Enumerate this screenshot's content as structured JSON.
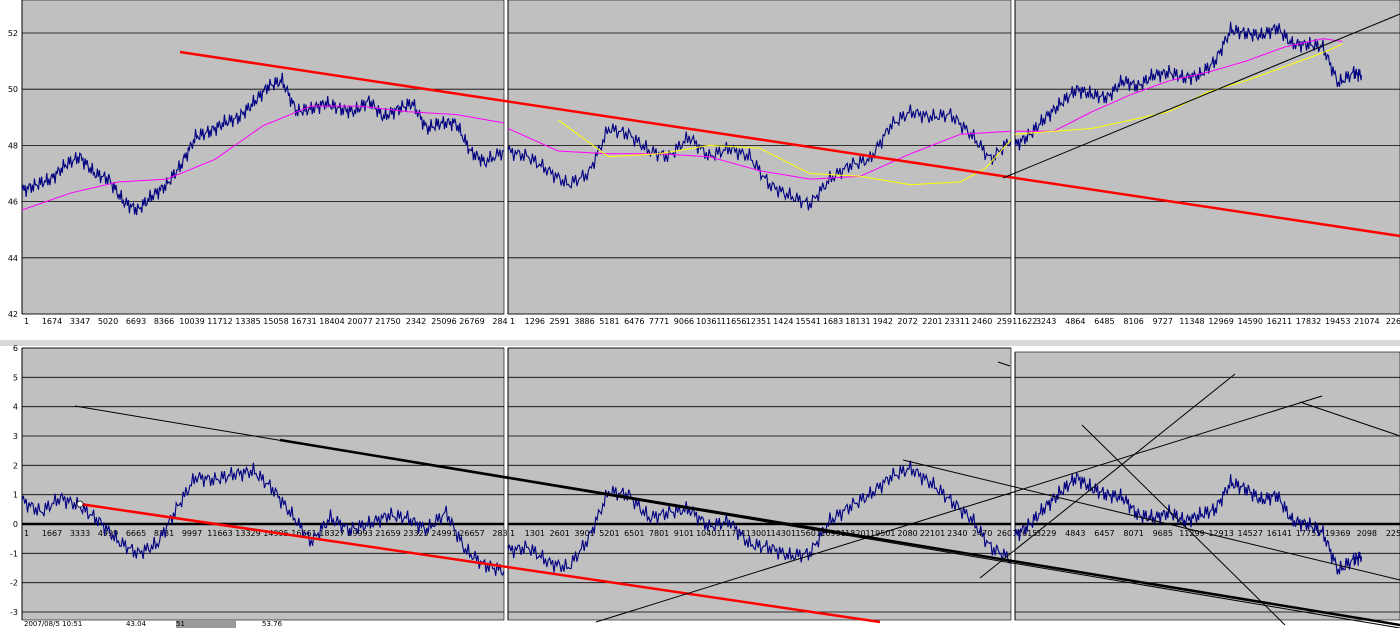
{
  "colors": {
    "plot_bg": "#c0c0c0",
    "gridline": "#000000",
    "price_series": "#000080",
    "ma_magenta": "#ff00ff",
    "ma_yellow": "#ffff00",
    "trend_red": "#ff0000",
    "trend_black": "#000000"
  },
  "chart_data": [
    {
      "type": "line",
      "name": "top-panel-1",
      "ylim": [
        42,
        53
      ],
      "yticks": [
        "42",
        "44",
        "46",
        "48",
        "50",
        "52"
      ],
      "xticks": [
        "1",
        "1674",
        "3347",
        "5020",
        "6693",
        "8366",
        "10039",
        "11712",
        "13385",
        "15058",
        "16731",
        "18404",
        "20077",
        "21750",
        "2342",
        "25096",
        "26769",
        "284"
      ],
      "series": [
        {
          "color": "navy",
          "x": [
            0,
            3,
            6,
            9,
            12,
            15,
            18,
            21,
            24,
            27,
            30,
            33,
            36,
            39,
            42,
            45,
            48,
            51,
            54,
            57,
            60,
            63,
            66,
            69,
            72,
            75,
            78,
            81,
            84,
            87,
            90,
            93,
            96,
            100
          ],
          "values": [
            46.4,
            46.6,
            46.8,
            47.3,
            47.6,
            47.0,
            46.8,
            46.0,
            45.7,
            46.2,
            46.6,
            47.3,
            48.3,
            48.5,
            48.8,
            49.0,
            49.5,
            50.1,
            50.3,
            49.2,
            49.3,
            49.5,
            49.3,
            49.2,
            49.6,
            49.0,
            49.3,
            49.5,
            48.6,
            48.8,
            48.8,
            47.8,
            47.4,
            47.8
          ]
        },
        {
          "color": "magenta",
          "x": [
            0,
            10,
            20,
            30,
            40,
            50,
            60,
            70,
            80,
            90,
            100
          ],
          "values": [
            45.7,
            46.3,
            46.7,
            46.8,
            47.5,
            48.7,
            49.4,
            49.4,
            49.2,
            49.1,
            48.8
          ]
        }
      ]
    },
    {
      "type": "line",
      "name": "top-panel-2",
      "ylim": [
        42,
        53
      ],
      "yticks": [],
      "xticks": [
        "1",
        "1296",
        "2591",
        "3886",
        "5181",
        "6476",
        "7771",
        "9066",
        "10361",
        "11656",
        "12351",
        "1424",
        "15541",
        "1683",
        "18131",
        "1942",
        "2072",
        "2201",
        "23311",
        "2460",
        "2591"
      ],
      "series": [
        {
          "color": "navy",
          "x": [
            0,
            4,
            8,
            12,
            16,
            20,
            24,
            28,
            32,
            36,
            40,
            44,
            48,
            52,
            56,
            60,
            64,
            68,
            72,
            76,
            80,
            84,
            88,
            92,
            96,
            100
          ],
          "values": [
            47.8,
            47.6,
            47.1,
            46.6,
            47.0,
            48.6,
            48.4,
            47.8,
            47.6,
            48.3,
            47.6,
            47.9,
            47.6,
            46.6,
            46.2,
            45.9,
            46.8,
            47.3,
            47.5,
            48.7,
            49.2,
            49.0,
            49.1,
            48.4,
            47.5,
            48.2
          ]
        },
        {
          "color": "magenta",
          "x": [
            0,
            10,
            20,
            30,
            40,
            50,
            60,
            70,
            80,
            90,
            100
          ],
          "values": [
            48.6,
            47.8,
            47.7,
            47.7,
            47.6,
            47.1,
            46.8,
            46.9,
            47.7,
            48.4,
            48.5
          ]
        },
        {
          "color": "yellow",
          "x": [
            10,
            20,
            30,
            40,
            50,
            60,
            70,
            80,
            90,
            95,
            100
          ],
          "values": [
            48.9,
            47.6,
            47.7,
            48.0,
            47.9,
            47.0,
            46.9,
            46.6,
            46.7,
            47.2,
            48.2
          ]
        }
      ]
    },
    {
      "type": "line",
      "name": "top-panel-3",
      "ylim": [
        42,
        53
      ],
      "yticks": [],
      "xticks": [
        "1622",
        "3243",
        "4864",
        "6485",
        "8106",
        "9727",
        "11348",
        "12969",
        "14590",
        "16211",
        "17832",
        "19453",
        "21074",
        "2269"
      ],
      "series": [
        {
          "color": "navy",
          "x": [
            0,
            4,
            8,
            12,
            16,
            20,
            24,
            28,
            32,
            36,
            40,
            44,
            48,
            52,
            56,
            60,
            64,
            68,
            72,
            76,
            80,
            84,
            88,
            90
          ],
          "values": [
            48.0,
            48.4,
            49.0,
            49.5,
            50.0,
            49.8,
            49.7,
            50.3,
            50.1,
            50.5,
            50.6,
            50.4,
            50.5,
            51.0,
            52.1,
            52.0,
            51.9,
            52.2,
            51.6,
            51.6,
            51.5,
            50.2,
            50.6,
            50.5
          ]
        },
        {
          "color": "magenta",
          "x": [
            0,
            10,
            20,
            30,
            40,
            50,
            60,
            70,
            80,
            85
          ],
          "values": [
            48.5,
            48.5,
            49.2,
            49.8,
            50.3,
            50.6,
            51.0,
            51.5,
            51.8,
            51.7
          ]
        },
        {
          "color": "yellow",
          "x": [
            0,
            10,
            20,
            30,
            40,
            50,
            60,
            70,
            80,
            85
          ],
          "values": [
            48.4,
            48.5,
            48.6,
            48.9,
            49.2,
            49.9,
            50.3,
            50.8,
            51.3,
            51.6
          ]
        }
      ]
    },
    {
      "type": "line",
      "name": "bottom-panel-1",
      "ylim": [
        -3.5,
        6
      ],
      "yticks": [
        "-3",
        "-2",
        "-1",
        "0",
        "1",
        "2",
        "3",
        "4",
        "5",
        "6"
      ],
      "xticks": [
        "1",
        "1667",
        "3333",
        "4999",
        "6665",
        "8331",
        "9997",
        "11663",
        "13329",
        "14995",
        "16661",
        "18327",
        "19993",
        "21659",
        "23325",
        "24991",
        "26657",
        "283"
      ],
      "series": [
        {
          "color": "navy",
          "x": [
            0,
            4,
            8,
            12,
            16,
            20,
            24,
            28,
            32,
            36,
            40,
            44,
            48,
            52,
            56,
            60,
            64,
            68,
            72,
            76,
            80,
            84,
            88,
            92,
            96,
            100
          ],
          "values": [
            0.8,
            0.4,
            0.9,
            0.6,
            0.1,
            -0.6,
            -1.0,
            -0.7,
            0.5,
            1.6,
            1.5,
            1.7,
            1.8,
            1.2,
            0.3,
            -0.6,
            0.2,
            -0.2,
            0.0,
            0.3,
            0.2,
            -0.2,
            0.4,
            -0.9,
            -1.4,
            -1.6
          ]
        }
      ]
    },
    {
      "type": "line",
      "name": "bottom-panel-2",
      "ylim": [
        -3.5,
        6
      ],
      "yticks": [],
      "xticks": [
        "1",
        "1301",
        "2601",
        "3901",
        "5201",
        "6501",
        "7801",
        "9101",
        "10401",
        "11701",
        "13001",
        "14301",
        "15601",
        "16901",
        "18201",
        "19501",
        "2080",
        "22101",
        "2340",
        "2470",
        "2601"
      ],
      "series": [
        {
          "color": "navy",
          "x": [
            0,
            4,
            8,
            12,
            16,
            20,
            24,
            28,
            32,
            36,
            40,
            44,
            48,
            52,
            56,
            60,
            64,
            68,
            72,
            76,
            80,
            84,
            88,
            92,
            96,
            100
          ],
          "values": [
            -0.9,
            -0.8,
            -1.3,
            -1.5,
            -0.5,
            1.1,
            1.0,
            0.2,
            0.4,
            0.5,
            -0.1,
            0.1,
            -0.7,
            -0.8,
            -1.1,
            -1.0,
            0.1,
            0.6,
            1.0,
            1.6,
            1.9,
            1.4,
            0.8,
            0.2,
            -0.8,
            -1.2
          ]
        }
      ]
    },
    {
      "type": "line",
      "name": "bottom-panel-3",
      "ylim": [
        -3.5,
        6
      ],
      "yticks": [],
      "xticks": [
        "1615",
        "3229",
        "4843",
        "6457",
        "8071",
        "9685",
        "11299",
        "12913",
        "14527",
        "16141",
        "17755",
        "19369",
        "2098",
        "2259"
      ],
      "series": [
        {
          "color": "navy",
          "x": [
            0,
            4,
            8,
            12,
            16,
            20,
            24,
            28,
            32,
            36,
            40,
            44,
            48,
            52,
            56,
            60,
            64,
            68,
            72,
            76,
            80,
            84,
            88,
            90
          ],
          "values": [
            -0.4,
            0.0,
            0.6,
            1.1,
            1.6,
            1.2,
            1.0,
            0.9,
            0.3,
            0.2,
            0.4,
            0.1,
            0.3,
            0.5,
            1.4,
            1.2,
            0.8,
            1.0,
            0.1,
            0.0,
            -0.3,
            -1.6,
            -1.2,
            -1.1
          ]
        }
      ]
    }
  ],
  "status_bar": {
    "cell1": "2007/08/5 10:51",
    "cell2": "43.04",
    "cell3": "51",
    "cell4": "53.76"
  }
}
